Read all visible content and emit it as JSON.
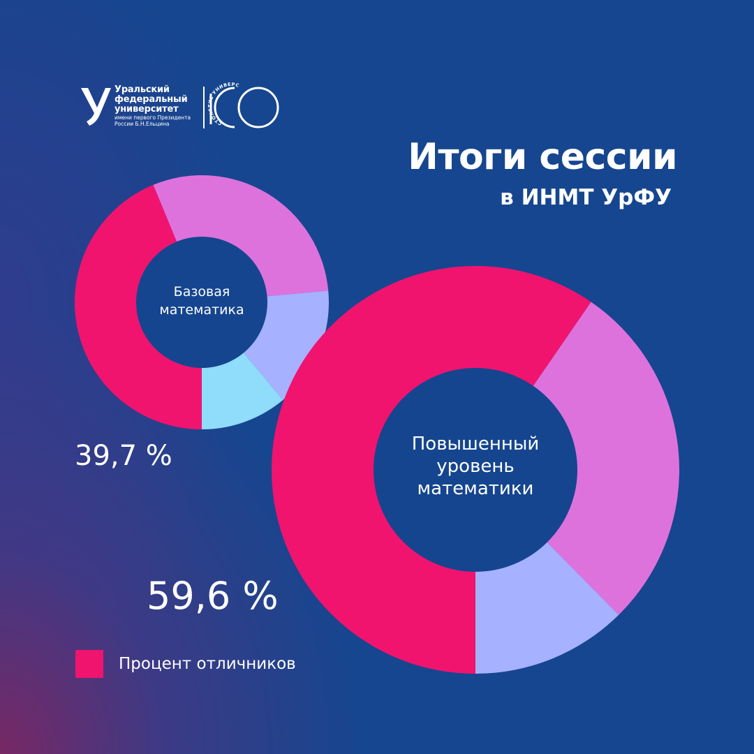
{
  "logo": {
    "lines": [
      "Уральский",
      "федеральный",
      "университет"
    ],
    "subtitle_lines": [
      "имени первого Президента",
      "России Б.Н.Ельцина"
    ],
    "centennial_text": "СТОЛЕТИЕ УНИВЕРСИТЕТА"
  },
  "header": {
    "title": "Итоги сессии",
    "subtitle": "в ИНМТ УрФУ"
  },
  "colors": {
    "background": "#16468f",
    "hole": "#15458f",
    "excellent": "#f0146f",
    "segment_pink": "#de72dc",
    "segment_lavender": "#a6b1ff",
    "segment_lightblue": "#8fdcfb"
  },
  "chart_data": [
    {
      "type": "pie",
      "title": "Базовая математика",
      "label_lines": [
        "Базовая",
        "математика"
      ],
      "values": [
        39.7,
        27,
        14,
        10
      ],
      "colors": [
        "#f0146f",
        "#de72dc",
        "#a6b1ff",
        "#8fdcfb"
      ],
      "highlight_label": "39,7 %"
    },
    {
      "type": "pie",
      "title": "Повышенный уровень математики",
      "label_lines": [
        "Повышенный",
        "уровень",
        "математики"
      ],
      "values": [
        59.6,
        28,
        12.4
      ],
      "colors": [
        "#f0146f",
        "#de72dc",
        "#a6b1ff"
      ],
      "highlight_label": "59,6 %"
    }
  ],
  "legend": {
    "label": "Процент отличников",
    "color": "#f0146f"
  }
}
